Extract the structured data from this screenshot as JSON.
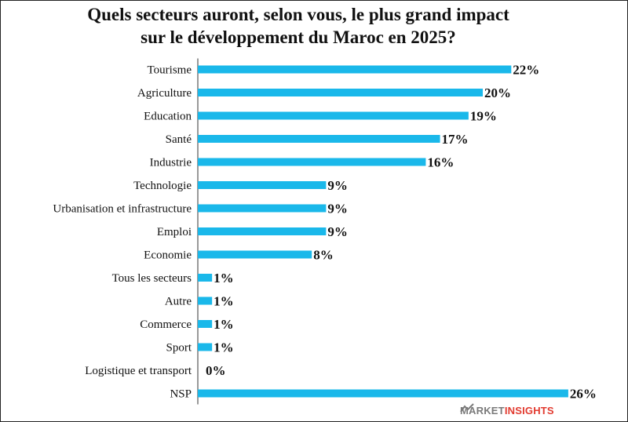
{
  "title_line1": "Quels secteurs auront, selon vous, le plus grand impact",
  "title_line2": "sur le développement du Maroc en 2025?",
  "chart_data": {
    "type": "bar",
    "orientation": "horizontal",
    "categories": [
      "Tourisme",
      "Agriculture",
      "Education",
      "Santé",
      "Industrie",
      "Technologie",
      "Urbanisation et infrastructure",
      "Emploi",
      "Economie",
      "Tous les secteurs",
      "Autre",
      "Commerce",
      "Sport",
      "Logistique et transport",
      "NSP"
    ],
    "values": [
      22,
      20,
      19,
      17,
      16,
      9,
      9,
      9,
      8,
      1,
      1,
      1,
      1,
      0,
      26
    ],
    "value_labels": [
      "22%",
      "20%",
      "19%",
      "17%",
      "16%",
      "9%",
      "9%",
      "9%",
      "8%",
      "1%",
      "1%",
      "1%",
      "1%",
      "0%",
      "26%"
    ],
    "unit": "%",
    "bar_color": "#1ab8ea",
    "grid": false,
    "legend": "none"
  },
  "brand": {
    "part1": "MARKET",
    "part2": "INSIGHTS",
    "color1": "#7a7a7a",
    "color2": "#e23b30"
  }
}
